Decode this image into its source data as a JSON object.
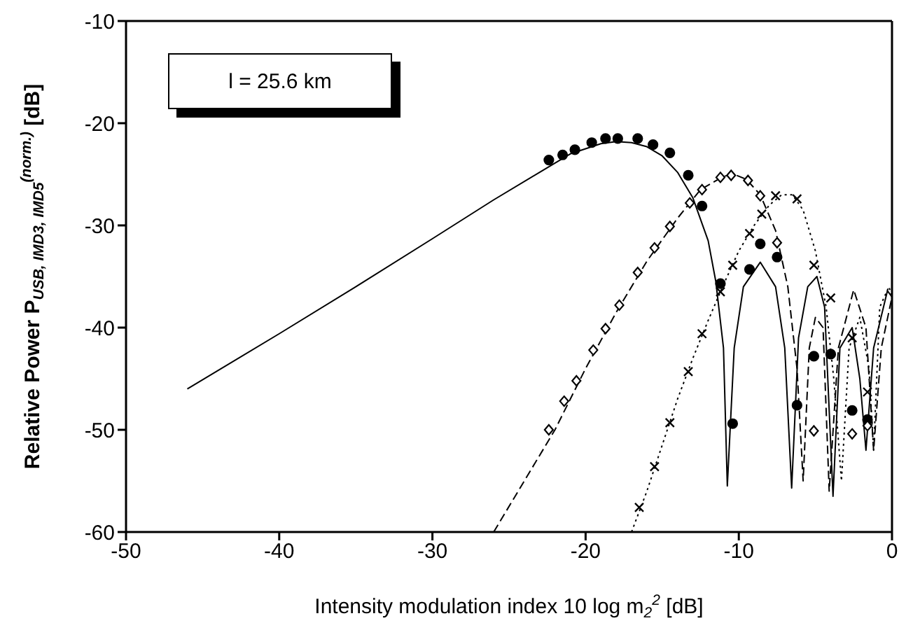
{
  "chart_data": {
    "type": "line",
    "xlabel": "Intensity modulation index  10 log m$_{2}$$^{2}$  [dB]",
    "ylabel": "Relative Power  P$_{USB, IMD3, IMD5}$$^{(norm.)}$  [dB]",
    "annotations": [
      "l = 25.6 km"
    ],
    "xlim": [
      -50,
      0
    ],
    "xticks": [
      -50,
      -40,
      -30,
      -20,
      -10,
      0
    ],
    "ylim": [
      -60,
      -10
    ],
    "yticks": [
      -60,
      -50,
      -40,
      -30,
      -20,
      -10
    ],
    "legend": false,
    "series": [
      {
        "color": "#000000",
        "line_style": "solid",
        "marker": "none",
        "x": [
          -46,
          -40,
          -35,
          -30,
          -26,
          -23,
          -21,
          -19,
          -18,
          -17,
          -16,
          -15,
          -14,
          -13,
          -12,
          -11.5,
          -11,
          -10.75,
          -10.3,
          -9.7,
          -8.6,
          -7.6,
          -7,
          -6.55,
          -6.1,
          -5.5,
          -4.9,
          -4.4,
          -3.85,
          -3.4,
          -2.6,
          -2.1,
          -1.7,
          -1.2,
          -0.3,
          0
        ],
        "values": [
          -46,
          -40.6,
          -36,
          -31.3,
          -27.5,
          -24.8,
          -23,
          -22,
          -21.8,
          -21.9,
          -22.3,
          -23.2,
          -24.8,
          -27.3,
          -31.5,
          -35.5,
          -42,
          -55.5,
          -42,
          -36,
          -33.6,
          -36,
          -42,
          -55.7,
          -41,
          -36,
          -35,
          -38,
          -56.5,
          -42,
          -40,
          -45,
          -52,
          -42,
          -36.4,
          -37
        ]
      },
      {
        "color": "#000000",
        "line_style": "dashed",
        "marker": "none",
        "x": [
          -26,
          -24,
          -22,
          -20,
          -18,
          -16,
          -14,
          -12.5,
          -11,
          -10.3,
          -9.5,
          -8.6,
          -7.6,
          -6.8,
          -6.2,
          -5.8,
          -5.4,
          -5,
          -4.5,
          -4.1,
          -3.5,
          -2.5,
          -1.7,
          -1.2,
          -0.7,
          0
        ],
        "values": [
          -60,
          -55,
          -50,
          -44,
          -38.5,
          -33.5,
          -29.3,
          -26.5,
          -25.2,
          -25,
          -25.5,
          -27,
          -30.5,
          -36,
          -44,
          -55,
          -42,
          -39,
          -40,
          -56,
          -42,
          -36.3,
          -40,
          -52,
          -42,
          -37
        ]
      },
      {
        "color": "#000000",
        "line_style": "dotted",
        "marker": "none",
        "x": [
          -17,
          -16,
          -15,
          -14,
          -13,
          -12,
          -11,
          -10,
          -9,
          -8,
          -7.2,
          -6.5,
          -5.8,
          -5,
          -4.3,
          -3.8,
          -3.3,
          -2.8,
          -2.1,
          -1.5,
          -1.2,
          -0.8,
          -0.2,
          0
        ],
        "values": [
          -60,
          -56,
          -51.5,
          -47,
          -43,
          -39.3,
          -35.8,
          -32.5,
          -30,
          -28,
          -27,
          -27,
          -28.5,
          -32.5,
          -38,
          -45,
          -55,
          -42,
          -39,
          -44,
          -52,
          -38,
          -36,
          -37
        ]
      },
      {
        "type": "scatter",
        "color": "#000000",
        "marker": "circle",
        "x": [
          -22.4,
          -21.5,
          -20.7,
          -19.6,
          -18.7,
          -17.9,
          -16.6,
          -15.6,
          -14.5,
          -13.3,
          -12.4,
          -11.2,
          -10.4,
          -9.3,
          -8.6,
          -7.5,
          -6.2,
          -5.1,
          -4.0,
          -2.6,
          -1.6
        ],
        "values": [
          -23.6,
          -23.1,
          -22.6,
          -21.9,
          -21.5,
          -21.5,
          -21.5,
          -22.1,
          -22.9,
          -25.1,
          -28.1,
          -35.7,
          -49.4,
          -34.3,
          -31.8,
          -33.1,
          -47.6,
          -42.8,
          -42.6,
          -48.1,
          -49.0
        ]
      },
      {
        "type": "scatter",
        "color": "#000000",
        "marker": "diamond",
        "x": [
          -22.4,
          -21.4,
          -20.6,
          -19.5,
          -18.7,
          -17.8,
          -16.6,
          -15.5,
          -14.5,
          -13.2,
          -12.4,
          -11.2,
          -10.5,
          -9.4,
          -8.6,
          -7.5,
          -5.1,
          -2.6,
          -1.6
        ],
        "values": [
          -50,
          -47.2,
          -45.2,
          -42.2,
          -40.1,
          -37.8,
          -34.6,
          -32.2,
          -30.1,
          -27.8,
          -26.5,
          -25.3,
          -25.1,
          -25.6,
          -27.1,
          -31.7,
          -50.1,
          -50.4,
          -49.6
        ]
      },
      {
        "type": "scatter",
        "color": "#000000",
        "marker": "cross",
        "x": [
          -16.5,
          -15.5,
          -14.5,
          -13.3,
          -12.4,
          -11.2,
          -10.4,
          -9.3,
          -8.5,
          -7.6,
          -6.2,
          -5.1,
          -4.0,
          -2.6,
          -1.6
        ],
        "values": [
          -57.6,
          -53.6,
          -49.3,
          -44.3,
          -40.6,
          -36.5,
          -33.9,
          -30.8,
          -28.9,
          -27.1,
          -27.4,
          -33.9,
          -37.1,
          -41,
          -46.3
        ]
      }
    ]
  }
}
